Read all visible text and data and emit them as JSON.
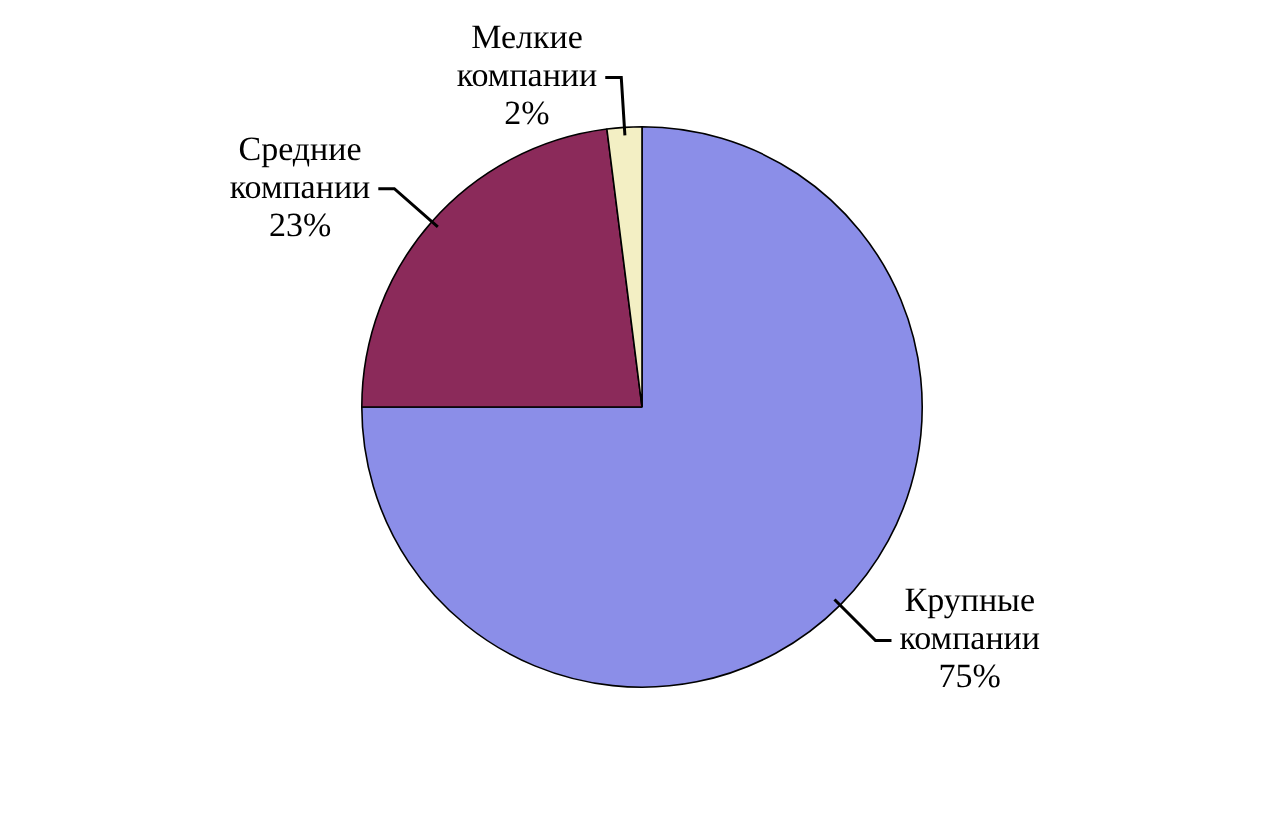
{
  "chart_data": {
    "type": "pie",
    "categories": [
      "Крупные компании",
      "Средние компании",
      "Мелкие компании"
    ],
    "values": [
      75,
      23,
      2
    ],
    "colors": [
      "#8b8ee8",
      "#8b2a5a",
      "#f3efc4"
    ],
    "value_labels": [
      "75%",
      "23%",
      "2%"
    ],
    "legend": false
  }
}
